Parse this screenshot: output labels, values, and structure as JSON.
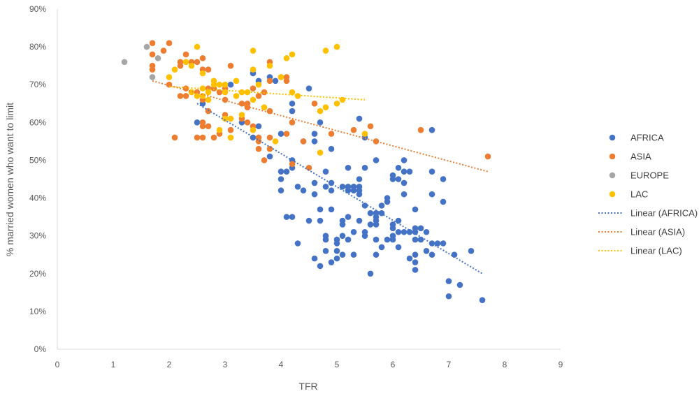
{
  "chart_data": {
    "type": "scatter",
    "title": "",
    "xlabel": "TFR",
    "ylabel": "% married women who want to limit",
    "xlim": [
      0,
      9
    ],
    "ylim": [
      0,
      90
    ],
    "x_ticks": [
      0,
      1,
      2,
      3,
      4,
      5,
      6,
      7,
      8,
      9
    ],
    "y_ticks": [
      0,
      10,
      20,
      30,
      40,
      50,
      60,
      70,
      80,
      90
    ],
    "y_tick_labels": [
      "0%",
      "10%",
      "20%",
      "30%",
      "40%",
      "50%",
      "60%",
      "70%",
      "80%",
      "90%"
    ],
    "x_tick_labels": [
      "0",
      "1",
      "2",
      "3",
      "4",
      "5",
      "6",
      "7",
      "8",
      "9"
    ],
    "grid": false,
    "legend_position": "right",
    "series": [
      {
        "name": "AFRICA",
        "color": "#4472C4",
        "points": [
          [
            2.5,
            60
          ],
          [
            2.6,
            65
          ],
          [
            3.0,
            69
          ],
          [
            3.1,
            70
          ],
          [
            3.3,
            60
          ],
          [
            3.5,
            56
          ],
          [
            3.5,
            73
          ],
          [
            3.6,
            71
          ],
          [
            3.6,
            59
          ],
          [
            3.8,
            51
          ],
          [
            3.8,
            72
          ],
          [
            3.9,
            71
          ],
          [
            4.0,
            57
          ],
          [
            4.0,
            47
          ],
          [
            4.0,
            45
          ],
          [
            4.0,
            42
          ],
          [
            4.1,
            47
          ],
          [
            4.1,
            35
          ],
          [
            4.2,
            63
          ],
          [
            4.2,
            65
          ],
          [
            4.2,
            48
          ],
          [
            4.2,
            50
          ],
          [
            4.2,
            35
          ],
          [
            4.3,
            43
          ],
          [
            4.3,
            28
          ],
          [
            4.4,
            42
          ],
          [
            4.4,
            55
          ],
          [
            4.5,
            69
          ],
          [
            4.5,
            34
          ],
          [
            4.6,
            57
          ],
          [
            4.6,
            55
          ],
          [
            4.6,
            44
          ],
          [
            4.6,
            41
          ],
          [
            4.6,
            24
          ],
          [
            4.7,
            60
          ],
          [
            4.7,
            37
          ],
          [
            4.7,
            34
          ],
          [
            4.7,
            22
          ],
          [
            4.8,
            47
          ],
          [
            4.8,
            43
          ],
          [
            4.8,
            30
          ],
          [
            4.8,
            26
          ],
          [
            4.8,
            29
          ],
          [
            4.9,
            53
          ],
          [
            4.9,
            42
          ],
          [
            4.9,
            44
          ],
          [
            4.9,
            37
          ],
          [
            4.9,
            23
          ],
          [
            5.0,
            29
          ],
          [
            5.0,
            28
          ],
          [
            5.0,
            26
          ],
          [
            5.0,
            24
          ],
          [
            5.1,
            43
          ],
          [
            5.1,
            34
          ],
          [
            5.1,
            33
          ],
          [
            5.1,
            30
          ],
          [
            5.1,
            25
          ],
          [
            5.2,
            48
          ],
          [
            5.2,
            43
          ],
          [
            5.2,
            42
          ],
          [
            5.2,
            35
          ],
          [
            5.2,
            29
          ],
          [
            5.3,
            43
          ],
          [
            5.3,
            42
          ],
          [
            5.3,
            31
          ],
          [
            5.3,
            25
          ],
          [
            5.4,
            61
          ],
          [
            5.4,
            45
          ],
          [
            5.4,
            43
          ],
          [
            5.4,
            42
          ],
          [
            5.4,
            41
          ],
          [
            5.4,
            34
          ],
          [
            5.5,
            56
          ],
          [
            5.5,
            48
          ],
          [
            5.5,
            38
          ],
          [
            5.5,
            31
          ],
          [
            5.5,
            30
          ],
          [
            5.6,
            36
          ],
          [
            5.6,
            33
          ],
          [
            5.6,
            20
          ],
          [
            5.7,
            50
          ],
          [
            5.7,
            36
          ],
          [
            5.7,
            35
          ],
          [
            5.7,
            34
          ],
          [
            5.7,
            33
          ],
          [
            5.7,
            29
          ],
          [
            5.7,
            25
          ],
          [
            5.8,
            38
          ],
          [
            5.8,
            36
          ],
          [
            5.8,
            27
          ],
          [
            5.9,
            40
          ],
          [
            5.9,
            39
          ],
          [
            5.9,
            29
          ],
          [
            6.0,
            46
          ],
          [
            6.0,
            45
          ],
          [
            6.0,
            33
          ],
          [
            6.0,
            32
          ],
          [
            6.0,
            30
          ],
          [
            6.0,
            29
          ],
          [
            6.1,
            48
          ],
          [
            6.1,
            45
          ],
          [
            6.1,
            34
          ],
          [
            6.1,
            31
          ],
          [
            6.1,
            27
          ],
          [
            6.2,
            50
          ],
          [
            6.2,
            47
          ],
          [
            6.2,
            44
          ],
          [
            6.2,
            41
          ],
          [
            6.2,
            31
          ],
          [
            6.3,
            47
          ],
          [
            6.3,
            31
          ],
          [
            6.3,
            24
          ],
          [
            6.4,
            37
          ],
          [
            6.4,
            32
          ],
          [
            6.4,
            31
          ],
          [
            6.4,
            29
          ],
          [
            6.4,
            25
          ],
          [
            6.4,
            23
          ],
          [
            6.4,
            21
          ],
          [
            6.5,
            32
          ],
          [
            6.5,
            29
          ],
          [
            6.6,
            31
          ],
          [
            6.6,
            26
          ],
          [
            6.7,
            58
          ],
          [
            6.7,
            47
          ],
          [
            6.7,
            41
          ],
          [
            6.7,
            28
          ],
          [
            6.7,
            25
          ],
          [
            6.8,
            28
          ],
          [
            6.9,
            45
          ],
          [
            6.9,
            39
          ],
          [
            6.9,
            28
          ],
          [
            7.0,
            18
          ],
          [
            7.0,
            14
          ],
          [
            7.1,
            25
          ],
          [
            7.2,
            17
          ],
          [
            7.4,
            26
          ],
          [
            7.6,
            13
          ]
        ]
      },
      {
        "name": "ASIA",
        "color": "#ED7D31",
        "points": [
          [
            1.7,
            81
          ],
          [
            1.7,
            78
          ],
          [
            1.7,
            75
          ],
          [
            1.7,
            74
          ],
          [
            1.9,
            79
          ],
          [
            2.0,
            81
          ],
          [
            2.0,
            70
          ],
          [
            2.1,
            56
          ],
          [
            2.2,
            76
          ],
          [
            2.2,
            75
          ],
          [
            2.2,
            67
          ],
          [
            2.3,
            78
          ],
          [
            2.3,
            76
          ],
          [
            2.3,
            69
          ],
          [
            2.3,
            67
          ],
          [
            2.4,
            76
          ],
          [
            2.5,
            76
          ],
          [
            2.5,
            68
          ],
          [
            2.5,
            56
          ],
          [
            2.6,
            77
          ],
          [
            2.6,
            74
          ],
          [
            2.6,
            66
          ],
          [
            2.6,
            60
          ],
          [
            2.6,
            59
          ],
          [
            2.6,
            56
          ],
          [
            2.7,
            74
          ],
          [
            2.7,
            69
          ],
          [
            2.7,
            63
          ],
          [
            2.7,
            59
          ],
          [
            2.8,
            69
          ],
          [
            2.8,
            56
          ],
          [
            2.9,
            68
          ],
          [
            2.9,
            57
          ],
          [
            3.0,
            69
          ],
          [
            3.0,
            66
          ],
          [
            3.0,
            62
          ],
          [
            3.1,
            75
          ],
          [
            3.1,
            58
          ],
          [
            3.3,
            65
          ],
          [
            3.3,
            61
          ],
          [
            3.4,
            65
          ],
          [
            3.4,
            64
          ],
          [
            3.4,
            60
          ],
          [
            3.5,
            69
          ],
          [
            3.5,
            59
          ],
          [
            3.6,
            67
          ],
          [
            3.6,
            56
          ],
          [
            3.6,
            55
          ],
          [
            3.6,
            53
          ],
          [
            3.7,
            68
          ],
          [
            3.7,
            50
          ],
          [
            3.8,
            76
          ],
          [
            3.8,
            71
          ],
          [
            3.8,
            63
          ],
          [
            3.8,
            56
          ],
          [
            3.8,
            53
          ],
          [
            4.0,
            72
          ],
          [
            4.1,
            72
          ],
          [
            4.1,
            71
          ],
          [
            4.1,
            57
          ],
          [
            4.2,
            60
          ],
          [
            4.2,
            49
          ],
          [
            4.4,
            55
          ],
          [
            4.5,
            48
          ],
          [
            4.6,
            65
          ],
          [
            4.9,
            57
          ],
          [
            5.3,
            58
          ],
          [
            5.6,
            59
          ],
          [
            5.7,
            55
          ],
          [
            6.5,
            58
          ],
          [
            7.7,
            51
          ]
        ]
      },
      {
        "name": "EUROPE",
        "color": "#A5A5A5",
        "points": [
          [
            1.2,
            76
          ],
          [
            1.6,
            80
          ],
          [
            1.7,
            72
          ],
          [
            1.8,
            77
          ]
        ]
      },
      {
        "name": "LAC",
        "color": "#FFC000",
        "points": [
          [
            2.0,
            72
          ],
          [
            2.1,
            74
          ],
          [
            2.3,
            76
          ],
          [
            2.4,
            75
          ],
          [
            2.4,
            68
          ],
          [
            2.5,
            80
          ],
          [
            2.5,
            67
          ],
          [
            2.6,
            73
          ],
          [
            2.6,
            69
          ],
          [
            2.6,
            67
          ],
          [
            2.7,
            68
          ],
          [
            2.7,
            66
          ],
          [
            2.8,
            71
          ],
          [
            2.8,
            70
          ],
          [
            2.9,
            70
          ],
          [
            2.9,
            58
          ],
          [
            3.0,
            70
          ],
          [
            3.0,
            68
          ],
          [
            3.0,
            61
          ],
          [
            3.1,
            61
          ],
          [
            3.1,
            56
          ],
          [
            3.2,
            71
          ],
          [
            3.2,
            67
          ],
          [
            3.3,
            68
          ],
          [
            3.3,
            62
          ],
          [
            3.4,
            68
          ],
          [
            3.5,
            79
          ],
          [
            3.5,
            74
          ],
          [
            3.5,
            66
          ],
          [
            3.5,
            58
          ],
          [
            3.6,
            70
          ],
          [
            3.7,
            64
          ],
          [
            3.8,
            75
          ],
          [
            3.9,
            55
          ],
          [
            4.0,
            72
          ],
          [
            4.1,
            77
          ],
          [
            4.2,
            78
          ],
          [
            4.2,
            68
          ],
          [
            4.3,
            67
          ],
          [
            4.7,
            63
          ],
          [
            4.7,
            52
          ],
          [
            4.8,
            79
          ],
          [
            4.8,
            64
          ],
          [
            5.0,
            80
          ],
          [
            5.0,
            65
          ],
          [
            5.1,
            66
          ],
          [
            5.5,
            57
          ]
        ]
      }
    ],
    "trendlines": [
      {
        "name": "Linear (AFRICA)",
        "color": "#4472C4",
        "x": [
          2.5,
          7.6
        ],
        "y": [
          65,
          20
        ]
      },
      {
        "name": "Linear (ASIA)",
        "color": "#ED7D31",
        "x": [
          1.7,
          7.7
        ],
        "y": [
          71,
          47
        ]
      },
      {
        "name": "Linear (LAC)",
        "color": "#FFC000",
        "x": [
          2.0,
          5.5
        ],
        "y": [
          69.5,
          66
        ]
      }
    ],
    "legend": [
      {
        "label": "AFRICA",
        "kind": "marker",
        "color": "#4472C4"
      },
      {
        "label": "ASIA",
        "kind": "marker",
        "color": "#ED7D31"
      },
      {
        "label": "EUROPE",
        "kind": "marker",
        "color": "#A5A5A5"
      },
      {
        "label": "LAC",
        "kind": "marker",
        "color": "#FFC000"
      },
      {
        "label": "Linear (AFRICA)",
        "kind": "line",
        "color": "#4472C4"
      },
      {
        "label": "Linear (ASIA)",
        "kind": "line",
        "color": "#ED7D31"
      },
      {
        "label": "Linear (LAC)",
        "kind": "line",
        "color": "#FFC000"
      }
    ]
  }
}
